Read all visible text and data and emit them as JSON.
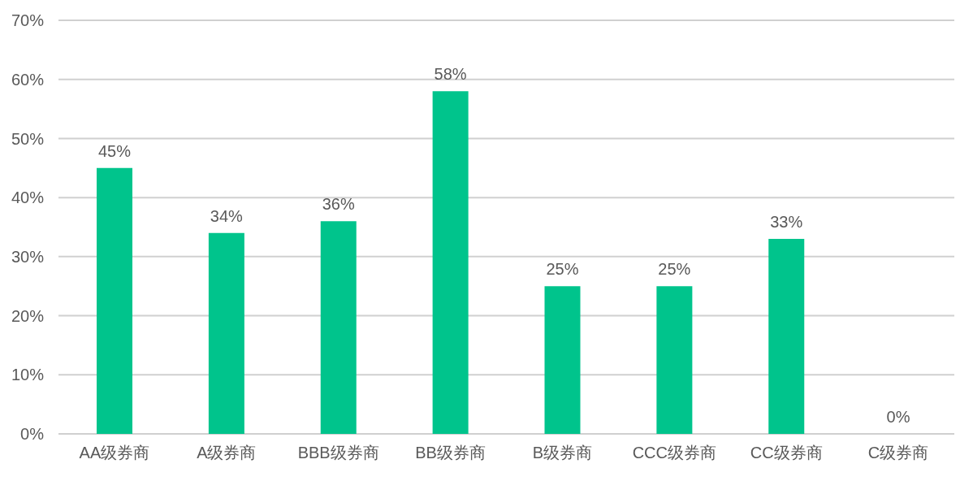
{
  "chart_data": {
    "type": "bar",
    "categories": [
      "AA级券商",
      "A级券商",
      "BBB级券商",
      "BB级券商",
      "B级券商",
      "CCC级券商",
      "CC级券商",
      "C级券商"
    ],
    "values": [
      45,
      34,
      36,
      58,
      25,
      25,
      33,
      0
    ],
    "color": "#00c48c",
    "value_labels": [
      "45%",
      "34%",
      "36%",
      "58%",
      "25%",
      "25%",
      "33%",
      "0%"
    ],
    "ylim": [
      0,
      70
    ],
    "yticks": [
      {
        "value": 0,
        "label": "0%"
      },
      {
        "value": 10,
        "label": "10%"
      },
      {
        "value": 20,
        "label": "20%"
      },
      {
        "value": 30,
        "label": "30%"
      },
      {
        "value": 40,
        "label": "40%"
      },
      {
        "value": 50,
        "label": "50%"
      },
      {
        "value": 60,
        "label": "60%"
      },
      {
        "value": 70,
        "label": "70%"
      }
    ],
    "grid": "y"
  }
}
